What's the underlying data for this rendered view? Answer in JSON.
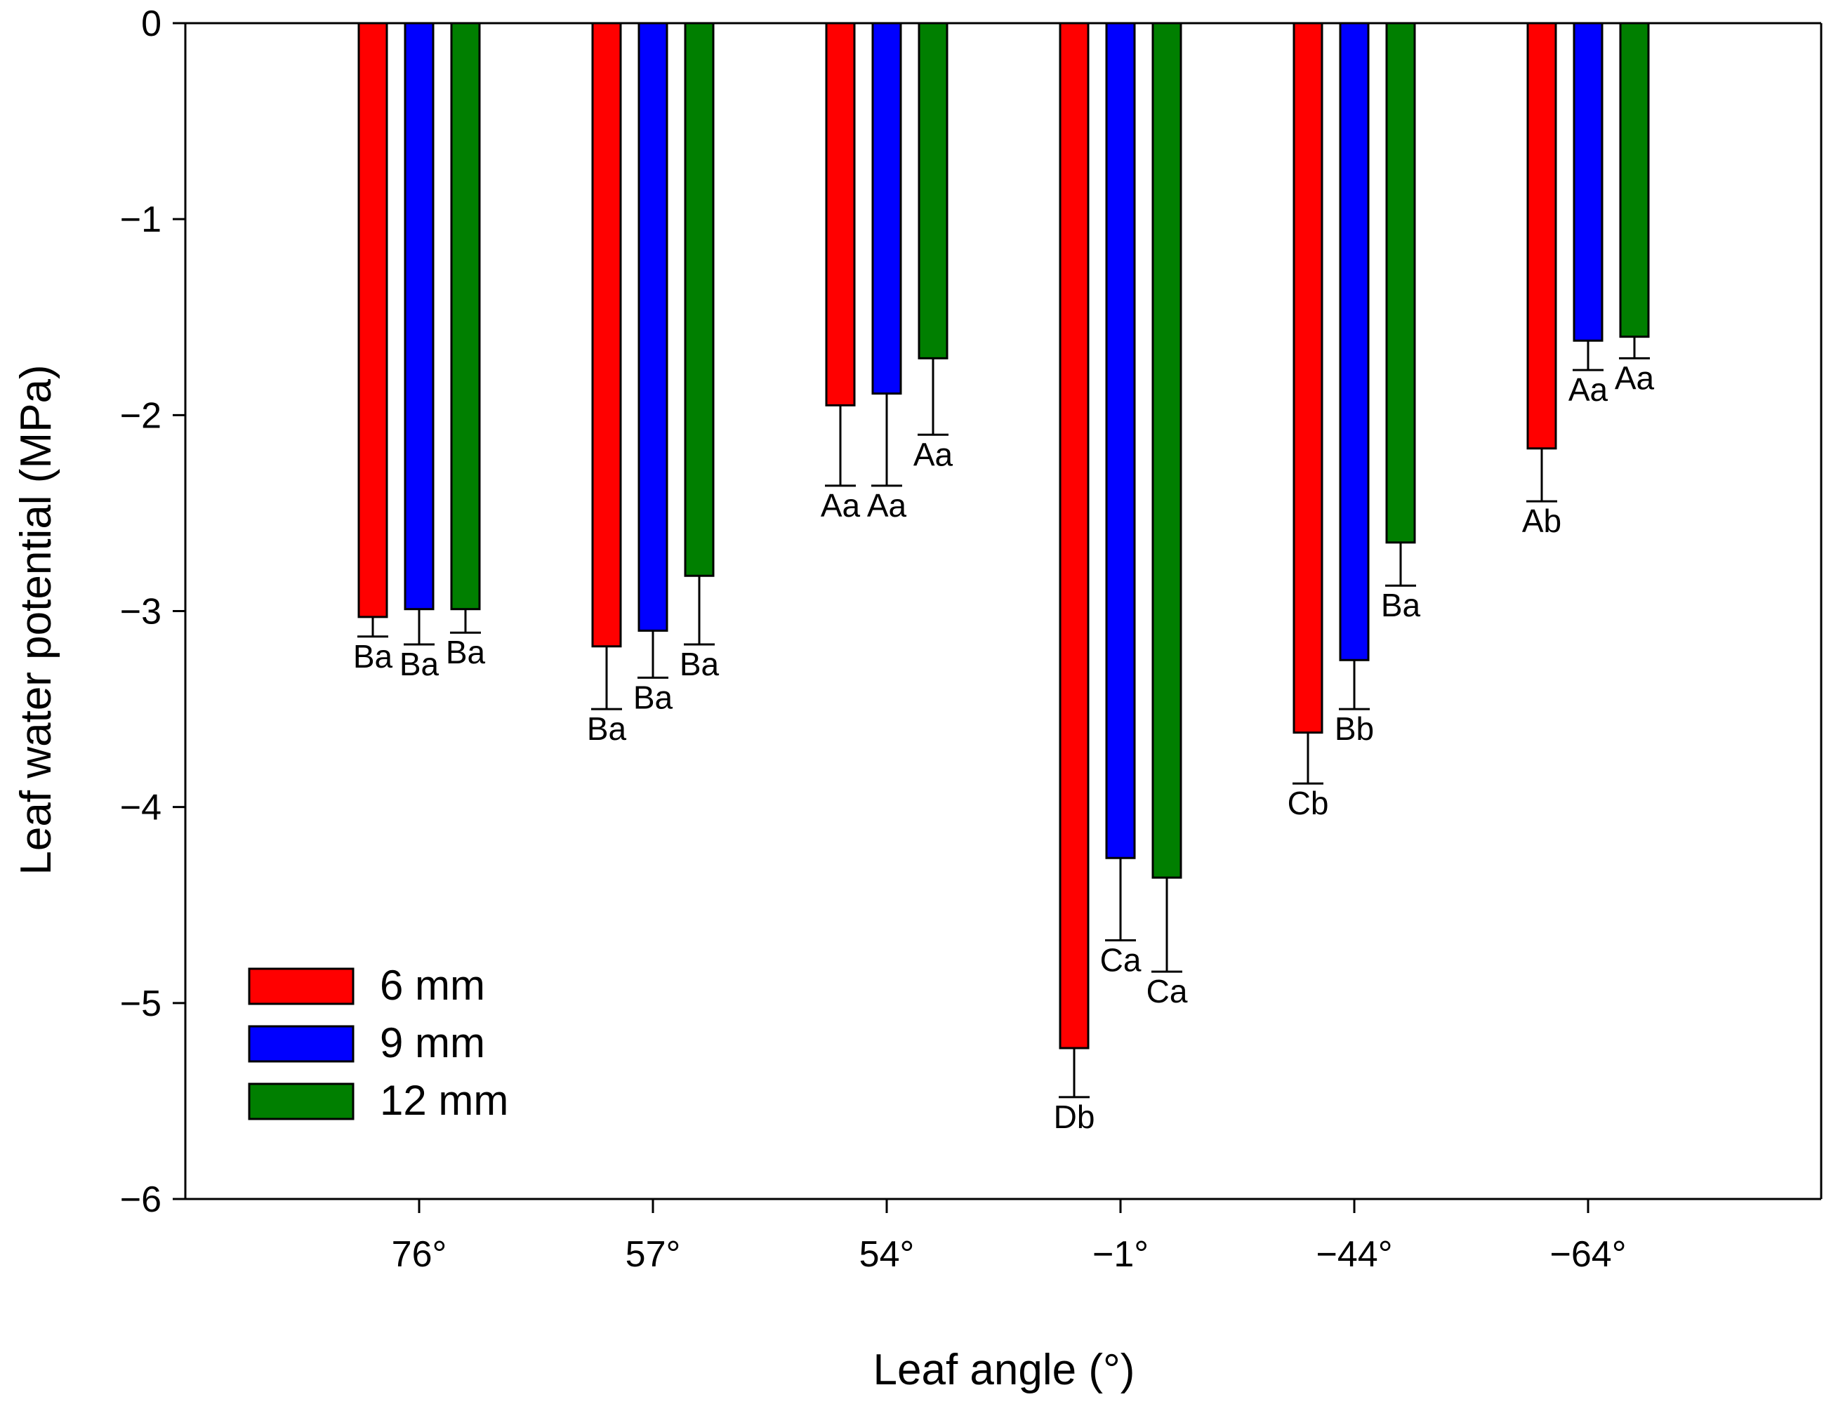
{
  "chart_data": {
    "type": "bar",
    "title": "",
    "xlabel": "Leaf angle (°)",
    "ylabel": "Leaf water potential (MPa)",
    "ylim": [
      -6,
      0
    ],
    "yticks": [
      0,
      -1,
      -2,
      -3,
      -4,
      -5,
      -6
    ],
    "ytick_labels": [
      "0",
      "−1",
      "−2",
      "−3",
      "−4",
      "−5",
      "−6"
    ],
    "categories": [
      "76°",
      "57°",
      "54°",
      "−1°",
      "−44°",
      "−64°"
    ],
    "legend_position": "bottom-left",
    "series": [
      {
        "name": "6 mm",
        "color": "#ff0000",
        "values": [
          -3.03,
          -3.18,
          -1.95,
          -5.23,
          -3.62,
          -2.17
        ],
        "errors": [
          0.1,
          0.32,
          0.41,
          0.25,
          0.26,
          0.27
        ],
        "labels": [
          "Ba",
          "Ba",
          "Aa",
          "Db",
          "Cb",
          "Ab"
        ]
      },
      {
        "name": "9 mm",
        "color": "#0000ff",
        "values": [
          -2.99,
          -3.1,
          -1.89,
          -4.26,
          -3.25,
          -1.62
        ],
        "errors": [
          0.18,
          0.24,
          0.47,
          0.42,
          0.25,
          0.15
        ],
        "labels": [
          "Ba",
          "Ba",
          "Aa",
          "Ca",
          "Bb",
          "Aa"
        ]
      },
      {
        "name": "12 mm",
        "color": "#007f00",
        "values": [
          -2.99,
          -2.82,
          -1.71,
          -4.36,
          -2.65,
          -1.6
        ],
        "errors": [
          0.12,
          0.35,
          0.39,
          0.48,
          0.22,
          0.11
        ],
        "labels": [
          "Ba",
          "Ba",
          "Aa",
          "Ca",
          "Ba",
          "Aa"
        ]
      }
    ]
  }
}
